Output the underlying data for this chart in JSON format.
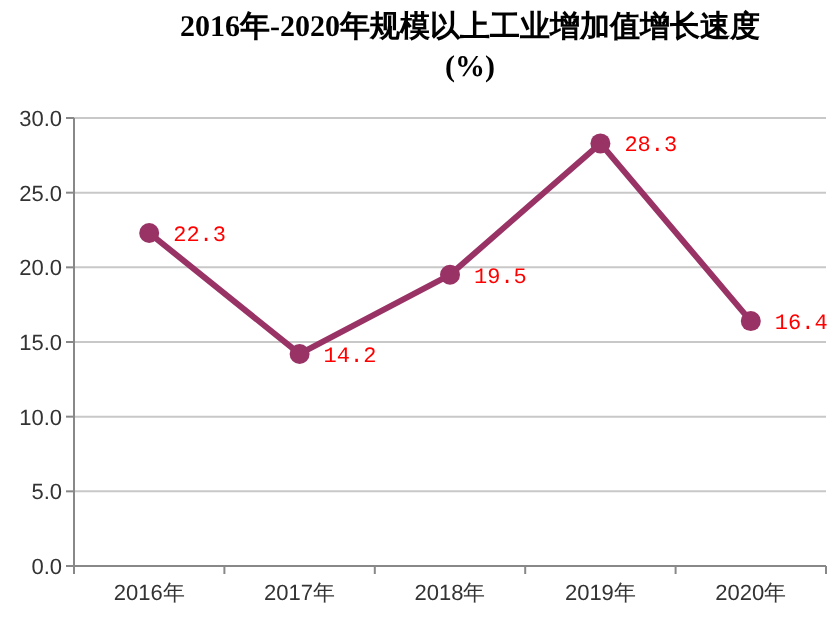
{
  "chart_data": {
    "type": "line",
    "title": "2016年-2020年规模以上工业增加值增长速度(%)",
    "categories": [
      "2016年",
      "2017年",
      "2018年",
      "2019年",
      "2020年"
    ],
    "series": [
      {
        "color": "#993366",
        "values": [
          22.3,
          14.2,
          19.5,
          28.3,
          16.4
        ]
      }
    ],
    "ylim": [
      0,
      30
    ],
    "yticks": [
      {
        "value": 0,
        "label": "0.0"
      },
      {
        "value": 5,
        "label": "5.0"
      },
      {
        "value": 10,
        "label": "10.0"
      },
      {
        "value": 15,
        "label": "15.0"
      },
      {
        "value": 20,
        "label": "20.0"
      },
      {
        "value": 25,
        "label": "25.0"
      },
      {
        "value": 30,
        "label": "30.0"
      }
    ],
    "grid": "y",
    "marker": "circle",
    "line_style": "solid",
    "data_labels": true
  }
}
